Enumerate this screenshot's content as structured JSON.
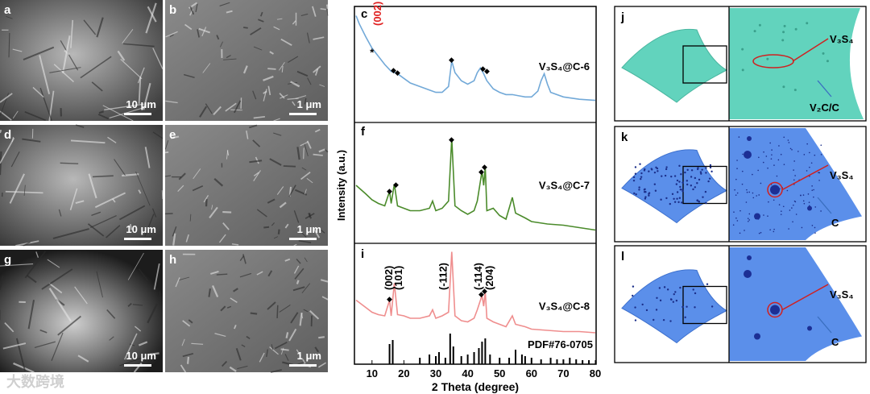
{
  "figure": {
    "sem_panels": [
      {
        "letter": "a",
        "scale": "10 μm"
      },
      {
        "letter": "b",
        "scale": "1 μm"
      },
      {
        "letter": "d",
        "scale": "10 μm"
      },
      {
        "letter": "e",
        "scale": "1 μm"
      },
      {
        "letter": "g",
        "scale": "10 μm"
      },
      {
        "letter": "h",
        "scale": "1 μm"
      }
    ],
    "models": [
      {
        "letter": "j",
        "labels": [
          "V₃S₄",
          "V₂C/C"
        ]
      },
      {
        "letter": "k",
        "labels": [
          "V₃S₄",
          "C"
        ]
      },
      {
        "letter": "l",
        "labels": [
          "V₃S₄",
          "C"
        ]
      }
    ],
    "watermark": "大数跨境"
  },
  "chart_data": [
    {
      "type": "line",
      "panel": "c",
      "ylabel": "Intensity (a.u.)",
      "xlim": [
        5,
        80
      ],
      "ylim": [
        0,
        100
      ],
      "x": [
        5,
        6,
        8,
        10,
        12,
        14,
        16,
        17,
        18,
        20,
        22,
        25,
        28,
        30,
        32,
        34,
        35,
        36,
        38,
        40,
        42,
        43,
        44,
        45,
        46,
        48,
        50,
        52,
        54,
        56,
        58,
        60,
        62,
        63,
        64,
        65,
        66,
        70,
        75,
        80
      ],
      "series": [
        {
          "name": "V₃S₄@C-6",
          "color": "#72a9d8",
          "values": [
            92,
            85,
            74,
            64,
            57,
            50,
            44,
            43,
            42,
            38,
            34,
            31,
            28,
            26,
            26,
            31,
            53,
            43,
            36,
            33,
            36,
            43,
            47,
            42,
            36,
            29,
            26,
            24,
            24,
            23,
            22,
            22,
            27,
            36,
            42,
            33,
            26,
            22,
            20,
            19
          ]
        }
      ],
      "annotations": [
        {
          "text": "(002)",
          "x": 12,
          "color": "#e02020"
        },
        {
          "text": "*",
          "x": 10,
          "color": "#000000"
        }
      ]
    },
    {
      "type": "line",
      "panel": "f",
      "xlim": [
        5,
        80
      ],
      "ylim": [
        0,
        100
      ],
      "x": [
        5,
        8,
        10,
        12,
        14,
        15.5,
        16,
        17,
        18,
        20,
        22,
        25,
        28,
        29,
        30,
        32,
        34,
        35,
        36,
        38,
        40,
        42,
        43,
        44.5,
        45,
        45.5,
        46,
        48,
        50,
        52,
        54,
        55,
        58,
        60,
        65,
        70,
        75,
        80
      ],
      "series": [
        {
          "name": "V₃S₄@C-7",
          "color": "#4b8b2b",
          "values": [
            48,
            41,
            36,
            33,
            31,
            43,
            33,
            49,
            31,
            29,
            27,
            27,
            29,
            35,
            27,
            29,
            35,
            87,
            31,
            27,
            24,
            27,
            35,
            60,
            48,
            63,
            27,
            29,
            23,
            20,
            38,
            25,
            21,
            18,
            16,
            15,
            13,
            11
          ]
        }
      ]
    },
    {
      "type": "line",
      "panel": "i",
      "xlim": [
        5,
        80
      ],
      "ylim": [
        0,
        100
      ],
      "x": [
        5,
        8,
        10,
        12,
        14,
        15.5,
        16,
        17,
        18,
        20,
        22,
        25,
        28,
        29,
        30,
        32,
        34,
        35,
        36,
        38,
        40,
        42,
        43,
        44.5,
        45,
        45.5,
        46,
        48,
        50,
        52,
        54,
        55,
        58,
        60,
        65,
        70,
        75,
        80
      ],
      "series": [
        {
          "name": "V₃S₄@C-8",
          "color": "#ef8e8e",
          "values": [
            53,
            47,
            43,
            41,
            40,
            53,
            40,
            67,
            41,
            40,
            38,
            38,
            40,
            45,
            38,
            40,
            43,
            93,
            40,
            36,
            35,
            38,
            45,
            57,
            48,
            60,
            38,
            35,
            33,
            31,
            40,
            33,
            31,
            29,
            28,
            27,
            27,
            26
          ]
        }
      ],
      "annotations": [
        {
          "text": "(002)",
          "x": 15.5
        },
        {
          "text": "(101)",
          "x": 18.5
        },
        {
          "text": "(-112)",
          "x": 32.5
        },
        {
          "text": "(-114)",
          "x": 43.5
        },
        {
          "text": "(204)",
          "x": 47
        }
      ]
    },
    {
      "type": "bar",
      "label": "PDF#76-0705",
      "color": "#000000",
      "xlim": [
        5,
        80
      ],
      "ylim": [
        0,
        40
      ],
      "xlabel": "2 Theta (degree)",
      "xticks": [
        10,
        20,
        30,
        40,
        50,
        60,
        70,
        80
      ],
      "x": [
        15.5,
        16.5,
        25,
        28,
        30,
        31,
        33,
        34.5,
        35.5,
        38,
        40,
        42,
        43.5,
        44.5,
        45.5,
        47,
        50,
        53,
        55,
        57,
        58,
        60,
        63,
        66,
        68,
        70,
        72,
        74,
        76,
        78
      ],
      "values": [
        25,
        30,
        8,
        12,
        10,
        15,
        8,
        38,
        22,
        10,
        12,
        15,
        20,
        28,
        32,
        12,
        8,
        8,
        18,
        12,
        10,
        8,
        6,
        8,
        6,
        6,
        8,
        6,
        5,
        5
      ]
    }
  ]
}
